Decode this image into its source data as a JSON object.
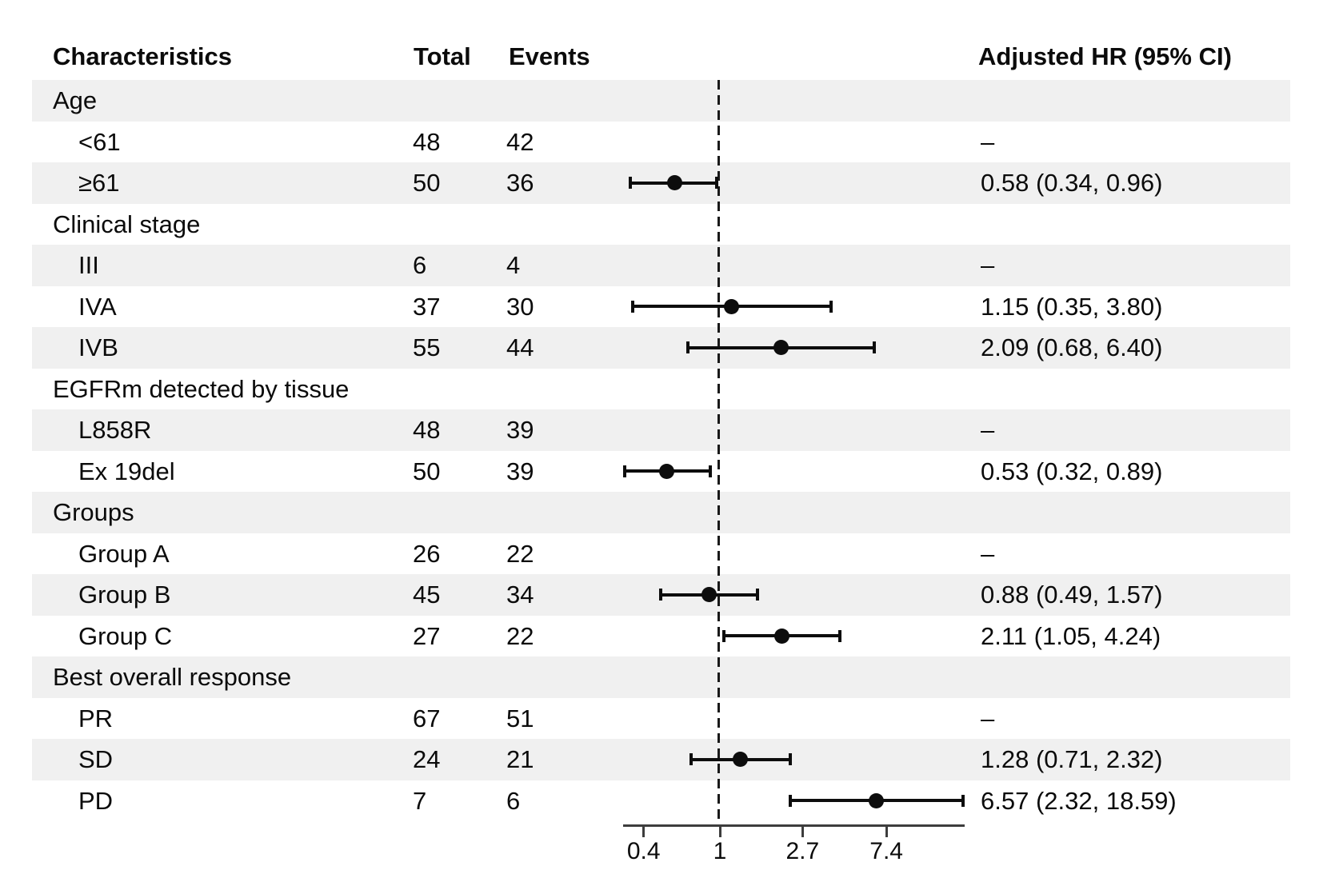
{
  "header": {
    "characteristics": "Characteristics",
    "total": "Total",
    "events": "Events",
    "hr": "Adjusted HR (95% CI)"
  },
  "colors": {
    "row_shade": "#f0f0f0",
    "text": "#0b0b0b",
    "marker": "#0d0d0d",
    "axis": "#3d3d3d"
  },
  "chart_data": {
    "type": "forest",
    "x_scale": "log",
    "reference_line": 1,
    "axis_range": [
      0.32,
      18.59
    ],
    "axis_ticks": [
      {
        "value": 0.4,
        "label": "0.4"
      },
      {
        "value": 1,
        "label": "1"
      },
      {
        "value": 2.7,
        "label": "2.7"
      },
      {
        "value": 7.4,
        "label": "7.4"
      }
    ],
    "rows": [
      {
        "kind": "group",
        "label": "Age"
      },
      {
        "kind": "item",
        "label": "<61",
        "total": "48",
        "events": "42",
        "hr_text": "–"
      },
      {
        "kind": "item",
        "label": "≥61",
        "total": "50",
        "events": "36",
        "hr_text": "0.58 (0.34, 0.96)",
        "est": 0.58,
        "lo": 0.34,
        "hi": 0.96
      },
      {
        "kind": "group",
        "label": "Clinical stage"
      },
      {
        "kind": "item",
        "label": "III",
        "total": "6",
        "events": "4",
        "hr_text": "–"
      },
      {
        "kind": "item",
        "label": "IVA",
        "total": "37",
        "events": "30",
        "hr_text": "1.15 (0.35, 3.80)",
        "est": 1.15,
        "lo": 0.35,
        "hi": 3.8
      },
      {
        "kind": "item",
        "label": "IVB",
        "total": "55",
        "events": "44",
        "hr_text": "2.09 (0.68, 6.40)",
        "est": 2.09,
        "lo": 0.68,
        "hi": 6.4
      },
      {
        "kind": "group",
        "label": "EGFRm detected by tissue"
      },
      {
        "kind": "item",
        "label": "L858R",
        "total": "48",
        "events": "39",
        "hr_text": "–"
      },
      {
        "kind": "item",
        "label": "Ex 19del",
        "total": "50",
        "events": "39",
        "hr_text": "0.53 (0.32, 0.89)",
        "est": 0.53,
        "lo": 0.32,
        "hi": 0.89
      },
      {
        "kind": "group",
        "label": "Groups"
      },
      {
        "kind": "item",
        "label": "Group A",
        "total": "26",
        "events": "22",
        "hr_text": "–"
      },
      {
        "kind": "item",
        "label": "Group B",
        "total": "45",
        "events": "34",
        "hr_text": "0.88 (0.49, 1.57)",
        "est": 0.88,
        "lo": 0.49,
        "hi": 1.57
      },
      {
        "kind": "item",
        "label": "Group C",
        "total": "27",
        "events": "22",
        "hr_text": "2.11 (1.05, 4.24)",
        "est": 2.11,
        "lo": 1.05,
        "hi": 4.24
      },
      {
        "kind": "group",
        "label": "Best overall response"
      },
      {
        "kind": "item",
        "label": "PR",
        "total": "67",
        "events": "51",
        "hr_text": "–"
      },
      {
        "kind": "item",
        "label": "SD",
        "total": "24",
        "events": "21",
        "hr_text": "1.28 (0.71, 2.32)",
        "est": 1.28,
        "lo": 0.71,
        "hi": 2.32
      },
      {
        "kind": "item",
        "label": "PD",
        "total": "7",
        "events": "6",
        "hr_text": "6.57 (2.32, 18.59)",
        "est": 6.57,
        "lo": 2.32,
        "hi": 18.59
      }
    ]
  }
}
